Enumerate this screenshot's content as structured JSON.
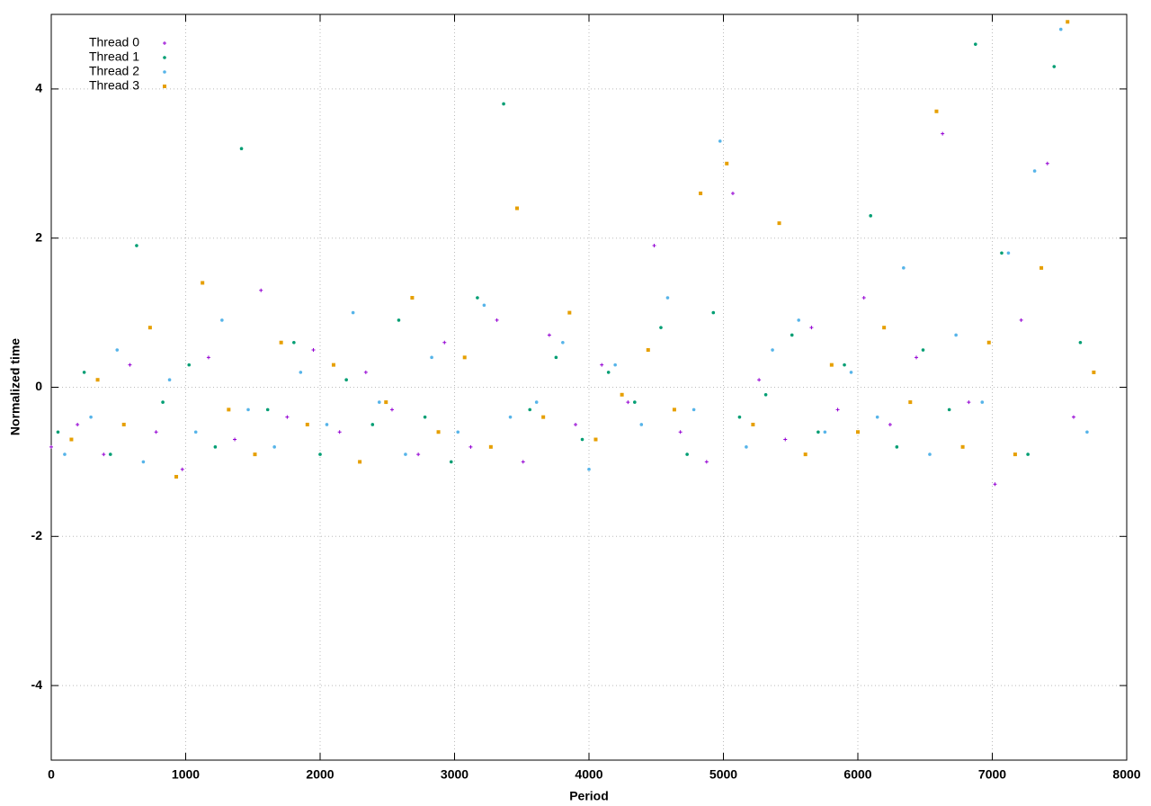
{
  "chart_data": {
    "type": "scatter",
    "x_label": "Period",
    "y_label": "Normalized time",
    "xlim": [
      0,
      8000
    ],
    "xticks": [
      0,
      1000,
      2000,
      3000,
      4000,
      5000,
      6000,
      7000,
      8000
    ],
    "ylim": [
      -5,
      5
    ],
    "yticks": [
      -4,
      -2,
      0,
      2,
      4
    ],
    "grid": true,
    "legend": "top-left",
    "series": [
      {
        "name": "Thread 0",
        "color": "#9400d3",
        "x": [
          0,
          195,
          390,
          585,
          780,
          975,
          1170,
          1365,
          1560,
          1755,
          1950,
          2145,
          2340,
          2535,
          2730,
          2925,
          3120,
          3315,
          3510,
          3705,
          3900,
          4095,
          4290,
          4485,
          4680,
          4875,
          5070,
          5265,
          5460,
          5655,
          5850,
          6045,
          6240,
          6435,
          6630,
          6825,
          7020,
          7215,
          7410,
          7605
        ],
        "values": [
          -0.8,
          -0.5,
          -0.9,
          0.3,
          -0.6,
          -1.1,
          0.4,
          -0.7,
          1.3,
          -0.4,
          0.5,
          -0.6,
          0.2,
          -0.3,
          -0.9,
          0.6,
          -0.8,
          0.9,
          -1.0,
          0.7,
          -0.5,
          0.3,
          -0.2,
          1.9,
          -0.6,
          -1.0,
          2.6,
          0.1,
          -0.7,
          0.8,
          -0.3,
          1.2,
          -0.5,
          0.4,
          3.4,
          -0.2,
          -1.3,
          0.9,
          3.0,
          -0.4
        ]
      },
      {
        "name": "Thread 1",
        "color": "#009e73",
        "x": [
          50,
          245,
          440,
          635,
          830,
          1025,
          1220,
          1415,
          1610,
          1805,
          2000,
          2195,
          2390,
          2585,
          2780,
          2975,
          3170,
          3365,
          3560,
          3755,
          3950,
          4145,
          4340,
          4535,
          4730,
          4925,
          5120,
          5315,
          5510,
          5705,
          5900,
          6095,
          6290,
          6485,
          6680,
          6875,
          7070,
          7265,
          7460,
          7655
        ],
        "values": [
          -0.6,
          0.2,
          -0.9,
          1.9,
          -0.2,
          0.3,
          -0.8,
          3.2,
          -0.3,
          0.6,
          -0.9,
          0.1,
          -0.5,
          0.9,
          -0.4,
          -1.0,
          1.2,
          3.8,
          -0.3,
          0.4,
          -0.7,
          0.2,
          -0.2,
          0.8,
          -0.9,
          1.0,
          -0.4,
          -0.1,
          0.7,
          -0.6,
          0.3,
          2.3,
          -0.8,
          0.5,
          -0.3,
          4.6,
          1.8,
          -0.9,
          4.3,
          0.6
        ]
      },
      {
        "name": "Thread 2",
        "color": "#56b4e9",
        "x": [
          100,
          295,
          490,
          685,
          880,
          1075,
          1270,
          1465,
          1660,
          1855,
          2050,
          2245,
          2440,
          2635,
          2830,
          3025,
          3220,
          3415,
          3610,
          3805,
          4000,
          4195,
          4390,
          4585,
          4780,
          4975,
          5170,
          5365,
          5560,
          5755,
          5950,
          6145,
          6340,
          6535,
          6730,
          6925,
          7120,
          7315,
          7510,
          7705
        ],
        "values": [
          -0.9,
          -0.4,
          0.5,
          -1.0,
          0.1,
          -0.6,
          0.9,
          -0.3,
          -0.8,
          0.2,
          -0.5,
          1.0,
          -0.2,
          -0.9,
          0.4,
          -0.6,
          1.1,
          -0.4,
          -0.2,
          0.6,
          -1.1,
          0.3,
          -0.5,
          1.2,
          -0.3,
          3.3,
          -0.8,
          0.5,
          0.9,
          -0.6,
          0.2,
          -0.4,
          1.6,
          -0.9,
          0.7,
          -0.2,
          1.8,
          2.9,
          4.8,
          -0.6
        ]
      },
      {
        "name": "Thread 3",
        "color": "#e69f00",
        "x": [
          150,
          345,
          540,
          735,
          930,
          1125,
          1320,
          1515,
          1710,
          1905,
          2100,
          2295,
          2490,
          2685,
          2880,
          3075,
          3270,
          3465,
          3660,
          3855,
          4050,
          4245,
          4440,
          4635,
          4830,
          5025,
          5220,
          5415,
          5610,
          5805,
          6000,
          6195,
          6390,
          6585,
          6780,
          6975,
          7170,
          7365,
          7560,
          7755
        ],
        "values": [
          -0.7,
          0.1,
          -0.5,
          0.8,
          -1.2,
          1.4,
          -0.3,
          -0.9,
          0.6,
          -0.5,
          0.3,
          -1.0,
          -0.2,
          1.2,
          -0.6,
          0.4,
          -0.8,
          2.4,
          -0.4,
          1.0,
          -0.7,
          -0.1,
          0.5,
          -0.3,
          2.6,
          3.0,
          -0.5,
          2.2,
          -0.9,
          0.3,
          -0.6,
          0.8,
          -0.2,
          3.7,
          -0.8,
          0.6,
          -0.9,
          1.6,
          4.9,
          0.2
        ]
      }
    ]
  }
}
